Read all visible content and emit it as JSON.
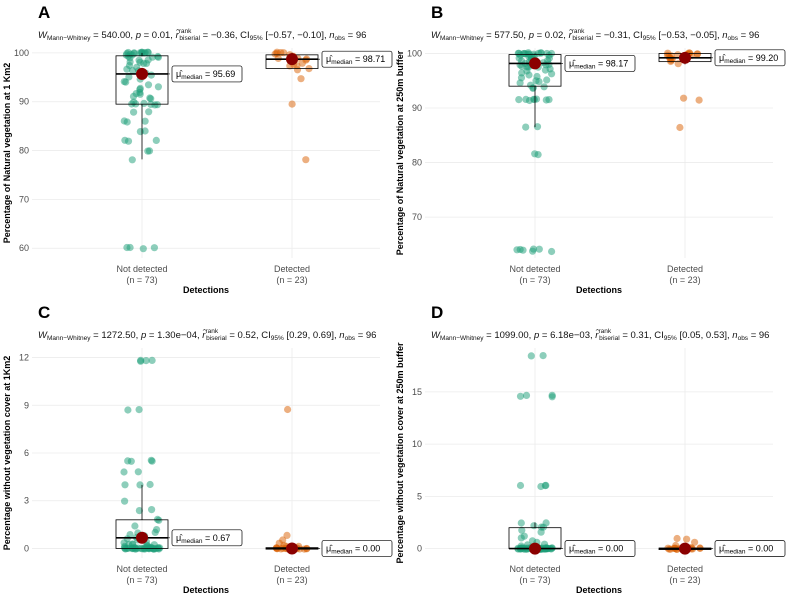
{
  "colors": {
    "not_detected": "#1b9e77",
    "detected": "#d95f02",
    "mean": "#8b0000",
    "grid": "#ebebeb",
    "box": "#000000"
  },
  "chart_data": [
    {
      "type": "box-violin-scatter",
      "panel": "A",
      "stat": {
        "w": "W",
        "w_sub": "Mann−Whitney",
        "w_val": " = 540.00, ",
        "p": "p",
        "p_val": " = 0.01, ",
        "r": "r̂",
        "r_sup": "rank",
        "r_sub": "biserial",
        "r_val": " = −0.36, CI",
        "ci_sub": "95%",
        "ci_val": " [−0.57, −0.10], ",
        "n": "n",
        "n_sub": "obs",
        "n_val": " = 96"
      },
      "ylabel": "Percentage of Natural vegetation at 1 Km2",
      "xlabel": "Detections",
      "ylim": [
        58,
        101
      ],
      "yticks": [
        60,
        70,
        80,
        90,
        100
      ],
      "categories": [
        {
          "label": "Not detected",
          "n": "(n = 73)",
          "q1": 89.5,
          "median": 95.69,
          "q3": 99.4,
          "wlow": 78.2,
          "whigh": 100,
          "mean": 95.69,
          "median_label": "μ̂median = 95.69",
          "points": [
            100,
            100,
            100,
            100,
            100,
            100,
            100,
            100,
            100,
            100,
            99.6,
            99.4,
            99.3,
            99,
            98.5,
            98.5,
            98.3,
            98,
            97.8,
            97.5,
            97,
            96.8,
            96.5,
            96,
            95.8,
            95.5,
            95,
            94.5,
            94,
            93.5,
            93,
            92.5,
            92,
            91.5,
            91,
            90.5,
            90,
            89.5,
            89.5,
            89.5,
            89.5,
            89.5,
            89.5,
            88,
            88,
            86,
            86,
            86,
            84,
            84,
            82,
            82,
            82,
            80,
            80,
            78.2,
            60,
            60,
            60,
            60,
            100,
            100,
            99.5,
            99.5,
            99,
            98.8,
            97.7,
            96.2,
            95.2,
            94.2,
            92.8,
            91.8,
            90.8
          ]
        },
        {
          "label": "Detected",
          "n": "(n = 23)",
          "q1": 96.8,
          "median": 98.71,
          "q3": 99.6,
          "wlow": 96.8,
          "whigh": 100,
          "mean": 98.71,
          "median_label": "μ̂median = 98.71",
          "points": [
            100,
            100,
            100,
            100,
            99.8,
            99.6,
            99.4,
            99.2,
            99,
            98.9,
            98.8,
            98.7,
            98.5,
            98.3,
            98,
            97.8,
            97.5,
            97.2,
            96.8,
            96.5,
            94.8,
            89.5,
            78.2
          ]
        }
      ]
    },
    {
      "type": "box-violin-scatter",
      "panel": "B",
      "stat": {
        "w": "W",
        "w_sub": "Mann−Whitney",
        "w_val": " = 577.50, ",
        "p": "p",
        "p_val": " = 0.02, ",
        "r": "r̂",
        "r_sup": "rank",
        "r_sub": "biserial",
        "r_val": " = −0.31, CI",
        "ci_sub": "95%",
        "ci_val": " [−0.53, −0.05], ",
        "n": "n",
        "n_sub": "obs",
        "n_val": " = 96"
      },
      "ylabel": "Percentage of Natural vegetation at 250m buffer",
      "xlabel": "Detections",
      "ylim": [
        62.5,
        101
      ],
      "yticks": [
        70,
        80,
        90,
        100
      ],
      "categories": [
        {
          "label": "Not detected",
          "n": "(n = 73)",
          "q1": 94,
          "median": 98.17,
          "q3": 99.8,
          "wlow": 86.5,
          "whigh": 100,
          "mean": 98.17,
          "median_label": "μ̂median = 98.17",
          "points": [
            100,
            100,
            100,
            100,
            100,
            100,
            100,
            100,
            100,
            100,
            100,
            100,
            99.9,
            99.8,
            99.7,
            99.6,
            99.5,
            99.4,
            99.3,
            99.2,
            99.1,
            99,
            98.9,
            98.8,
            98.7,
            98.6,
            98.5,
            98.4,
            98.3,
            98.2,
            98.1,
            98,
            97.9,
            97.8,
            97.7,
            97.6,
            97.5,
            97.4,
            97.2,
            97,
            96.8,
            96.5,
            96.3,
            96,
            95.8,
            95.5,
            95.2,
            95,
            94.8,
            94.5,
            94.3,
            94,
            93.8,
            93.5,
            91.5,
            91.5,
            91.5,
            91.5,
            91.5,
            91.5,
            91.5,
            91.5,
            86.5,
            86.5,
            81.5,
            81.5,
            64,
            64,
            64,
            64,
            63.8,
            63.8,
            63.8
          ]
        },
        {
          "label": "Detected",
          "n": "(n = 23)",
          "q1": 98.5,
          "median": 99.2,
          "q3": 100,
          "wlow": 98,
          "whigh": 100,
          "mean": 99.2,
          "median_label": "μ̂median = 99.20",
          "points": [
            100,
            100,
            100,
            100,
            100,
            100,
            99.9,
            99.8,
            99.7,
            99.6,
            99.5,
            99.4,
            99.3,
            99.2,
            99.1,
            99,
            98.9,
            98.7,
            98.5,
            98.2,
            91.8,
            91.5,
            86.5
          ]
        }
      ]
    },
    {
      "type": "box-violin-scatter",
      "panel": "C",
      "stat": {
        "w": "W",
        "w_sub": "Mann−Whitney",
        "w_val": " = 1272.50, ",
        "p": "p",
        "p_val": " = 1.30e−04, ",
        "r": "r̂",
        "r_sup": "rank",
        "r_sub": "biserial",
        "r_val": " = 0.52, CI",
        "ci_sub": "95%",
        "ci_val": " [0.29, 0.69], ",
        "n": "n",
        "n_sub": "obs",
        "n_val": " = 96"
      },
      "ylabel": "Percentage without vegetation cover at 1Km2",
      "xlabel": "Detections",
      "ylim": [
        -0.6,
        12.6
      ],
      "yticks": [
        0,
        3,
        6,
        9,
        12
      ],
      "categories": [
        {
          "label": "Not detected",
          "n": "(n = 73)",
          "q1": 0,
          "median": 0.67,
          "q3": 1.8,
          "wlow": 0,
          "whigh": 4.0,
          "mean": 0.67,
          "median_label": "μ̂median = 0.67",
          "points": [
            11.8,
            11.8,
            11.8,
            11.8,
            8.7,
            8.7,
            5.5,
            5.5,
            5.5,
            5.5,
            4.8,
            4.8,
            4,
            4,
            4,
            3,
            2.4,
            2.4,
            1.8,
            1.8,
            1.4,
            1.2,
            1,
            1,
            0.9,
            0.8,
            0.7,
            0.6,
            0.5,
            0.5,
            0.4,
            0.4,
            0.3,
            0.3,
            0.2,
            0.2,
            0.2,
            0.1,
            0.1,
            0.1,
            0.1,
            0,
            0,
            0,
            0,
            0,
            0,
            0,
            0,
            0,
            0,
            0,
            0,
            0,
            0,
            0,
            0,
            0,
            0,
            0,
            0,
            0,
            0,
            0,
            0,
            0,
            0,
            0,
            0,
            0,
            0,
            0,
            0
          ]
        },
        {
          "label": "Detected",
          "n": "(n = 23)",
          "q1": 0,
          "median": 0,
          "q3": 0.05,
          "wlow": 0,
          "whigh": 0.1,
          "mean": 0,
          "median_label": "μ̂median = 0.00",
          "points": [
            8.7,
            0.8,
            0.5,
            0.3,
            0.2,
            0.1,
            0.1,
            0,
            0,
            0,
            0,
            0,
            0,
            0,
            0,
            0,
            0,
            0,
            0,
            0,
            0,
            0,
            0
          ]
        }
      ]
    },
    {
      "type": "box-violin-scatter",
      "panel": "D",
      "stat": {
        "w": "W",
        "w_sub": "Mann−Whitney",
        "w_val": " = 1099.00, ",
        "p": "p",
        "p_val": " = 6.18e−03, ",
        "r": "r̂",
        "r_sup": "rank",
        "r_sub": "biserial",
        "r_val": " = 0.31, CI",
        "ci_sub": "95%",
        "ci_val": " [0.05, 0.53], ",
        "n": "n",
        "n_sub": "obs",
        "n_val": " = 96"
      },
      "ylabel": "Percentage without vegetation cover at 250m buffer",
      "xlabel": "Detections",
      "ylim": [
        -0.9,
        19.2
      ],
      "yticks": [
        0,
        5,
        10,
        15
      ],
      "categories": [
        {
          "label": "Not detected",
          "n": "(n = 73)",
          "q1": 0,
          "median": 0,
          "q3": 2,
          "wlow": 0,
          "whigh": 2.5,
          "mean": 0,
          "median_label": "μ̂median = 0.00",
          "points": [
            18.5,
            18.5,
            14.6,
            14.6,
            14.6,
            14.6,
            6,
            6,
            6,
            6,
            2.5,
            2.5,
            2.2,
            2,
            2,
            1.8,
            1.5,
            1.2,
            1,
            0.8,
            0.6,
            0.4,
            0.3,
            0.2,
            0.1,
            0,
            0,
            0,
            0,
            0,
            0,
            0,
            0,
            0,
            0,
            0,
            0,
            0,
            0,
            0,
            0,
            0,
            0,
            0,
            0,
            0,
            0,
            0,
            0,
            0,
            0,
            0,
            0,
            0,
            0,
            0,
            0,
            0,
            0,
            0,
            0,
            0,
            0,
            0,
            0,
            0,
            0,
            0,
            0,
            0,
            0,
            0,
            0
          ]
        },
        {
          "label": "Detected",
          "n": "(n = 23)",
          "q1": 0,
          "median": 0,
          "q3": 0.05,
          "wlow": 0,
          "whigh": 0.1,
          "mean": 0,
          "median_label": "μ̂median = 0.00",
          "points": [
            0.9,
            0.9,
            0.6,
            0.3,
            0.1,
            0,
            0,
            0,
            0,
            0,
            0,
            0,
            0,
            0,
            0,
            0,
            0,
            0,
            0,
            0,
            0,
            0,
            0
          ]
        }
      ]
    }
  ]
}
